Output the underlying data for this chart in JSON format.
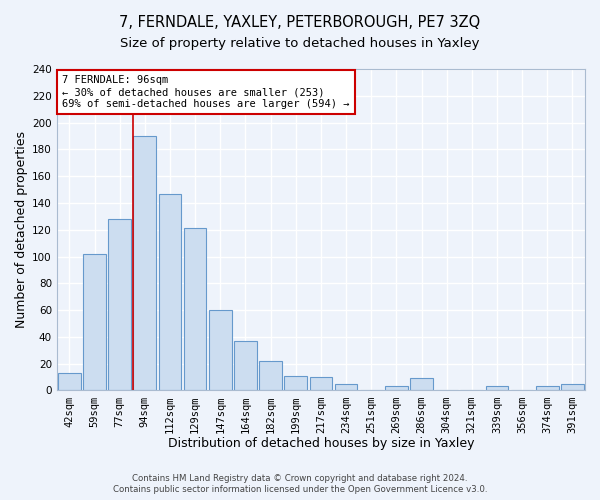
{
  "title": "7, FERNDALE, YAXLEY, PETERBOROUGH, PE7 3ZQ",
  "subtitle": "Size of property relative to detached houses in Yaxley",
  "xlabel": "Distribution of detached houses by size in Yaxley",
  "ylabel": "Number of detached properties",
  "footer_line1": "Contains HM Land Registry data © Crown copyright and database right 2024.",
  "footer_line2": "Contains public sector information licensed under the Open Government Licence v3.0.",
  "bin_labels": [
    "42sqm",
    "59sqm",
    "77sqm",
    "94sqm",
    "112sqm",
    "129sqm",
    "147sqm",
    "164sqm",
    "182sqm",
    "199sqm",
    "217sqm",
    "234sqm",
    "251sqm",
    "269sqm",
    "286sqm",
    "304sqm",
    "321sqm",
    "339sqm",
    "356sqm",
    "374sqm",
    "391sqm"
  ],
  "bar_heights": [
    13,
    102,
    128,
    190,
    147,
    121,
    60,
    37,
    22,
    11,
    10,
    5,
    0,
    3,
    9,
    0,
    0,
    3,
    0,
    3,
    5
  ],
  "bar_color": "#ccddf0",
  "bar_edge_color": "#6699cc",
  "property_bin_index": 3,
  "vline_color": "#cc0000",
  "annotation_title": "7 FERNDALE: 96sqm",
  "annotation_line1": "← 30% of detached houses are smaller (253)",
  "annotation_line2": "69% of semi-detached houses are larger (594) →",
  "annotation_box_color": "#cc0000",
  "ylim": [
    0,
    240
  ],
  "yticks": [
    0,
    20,
    40,
    60,
    80,
    100,
    120,
    140,
    160,
    180,
    200,
    220,
    240
  ],
  "background_color": "#eef3fb",
  "grid_color": "#ffffff",
  "title_fontsize": 10.5,
  "subtitle_fontsize": 9.5,
  "axis_label_fontsize": 9,
  "tick_fontsize": 7.5
}
